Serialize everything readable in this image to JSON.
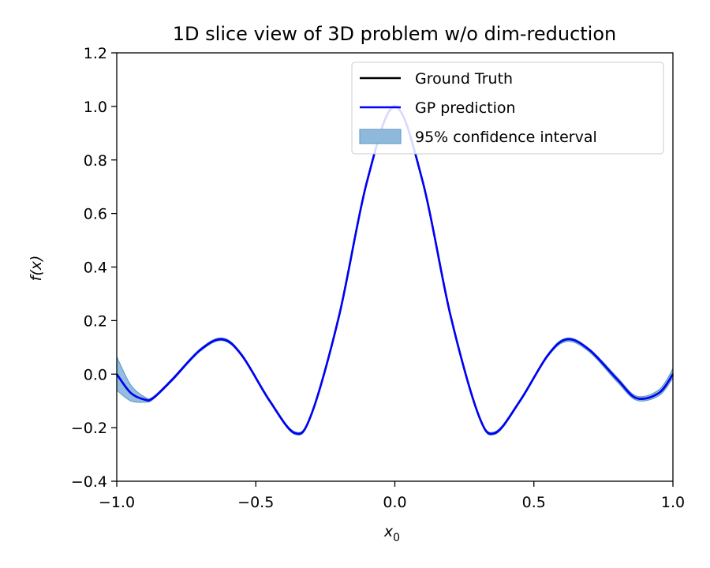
{
  "chart_data": {
    "type": "line",
    "title": "1D slice view of 3D problem w/o dim-reduction",
    "xlabel": "x",
    "xlabel_sub": "0",
    "ylabel": "f(x)",
    "xlim": [
      -1.0,
      1.0
    ],
    "ylim": [
      -0.4,
      1.2
    ],
    "xticks": [
      -1.0,
      -0.5,
      0.0,
      0.5,
      1.0
    ],
    "xtick_labels": [
      "−1.0",
      "−0.5",
      "0.0",
      "0.5",
      "1.0"
    ],
    "yticks": [
      -0.4,
      -0.2,
      0.0,
      0.2,
      0.4,
      0.6,
      0.8,
      1.0,
      1.2
    ],
    "ytick_labels": [
      "−0.4",
      "−0.2",
      "0.0",
      "0.2",
      "0.4",
      "0.6",
      "0.8",
      "1.0",
      "1.2"
    ],
    "grid": false,
    "legend_position": "top-right",
    "legend": [
      "Ground Truth",
      "GP prediction",
      "95% confidence interval"
    ],
    "colors": {
      "ground_truth": "#000000",
      "gp": "#0000ff",
      "ci_fill": "#8fb9db",
      "ci_edge": "#5a96c4"
    },
    "x": [
      -1.0,
      -0.95,
      -0.9,
      -0.87,
      -0.8,
      -0.7,
      -0.62,
      -0.55,
      -0.45,
      -0.36,
      -0.3,
      -0.2,
      -0.1,
      0.0,
      0.1,
      0.2,
      0.3,
      0.36,
      0.45,
      0.55,
      0.62,
      0.7,
      0.8,
      0.87,
      0.95,
      1.0
    ],
    "series": [
      {
        "name": "Ground Truth",
        "values": [
          0.0,
          -0.07,
          -0.095,
          -0.09,
          -0.02,
          0.09,
          0.13,
          0.07,
          -0.1,
          -0.22,
          -0.15,
          0.22,
          0.72,
          1.0,
          0.72,
          0.22,
          -0.15,
          -0.22,
          -0.1,
          0.07,
          0.13,
          0.09,
          -0.02,
          -0.09,
          -0.07,
          0.0
        ]
      },
      {
        "name": "GP prediction",
        "values": [
          0.0,
          -0.07,
          -0.095,
          -0.09,
          -0.02,
          0.09,
          0.13,
          0.07,
          -0.1,
          -0.22,
          -0.15,
          0.22,
          0.72,
          1.0,
          0.72,
          0.22,
          -0.15,
          -0.22,
          -0.1,
          0.07,
          0.13,
          0.09,
          -0.02,
          -0.09,
          -0.07,
          0.0
        ]
      }
    ],
    "confidence_interval": {
      "name": "95% confidence interval",
      "lower": [
        -0.06,
        -0.1,
        -0.105,
        -0.095,
        -0.025,
        0.085,
        0.125,
        0.065,
        -0.105,
        -0.225,
        -0.155,
        0.215,
        0.715,
        0.995,
        0.715,
        0.215,
        -0.155,
        -0.225,
        -0.105,
        0.065,
        0.122,
        0.082,
        -0.03,
        -0.098,
        -0.08,
        -0.015
      ],
      "upper": [
        0.065,
        -0.04,
        -0.085,
        -0.085,
        -0.015,
        0.095,
        0.135,
        0.075,
        -0.095,
        -0.215,
        -0.145,
        0.225,
        0.725,
        1.005,
        0.725,
        0.225,
        -0.145,
        -0.215,
        -0.095,
        0.075,
        0.135,
        0.095,
        -0.012,
        -0.082,
        -0.058,
        0.02
      ]
    }
  }
}
